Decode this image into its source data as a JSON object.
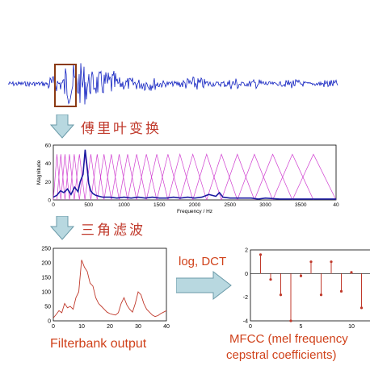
{
  "steps": {
    "fourier": "傅里叶变换",
    "triangle_filter": "三角滤波",
    "log_dct": "log, DCT"
  },
  "captions": {
    "filterbank": "Filterbank output",
    "mfcc_line1": "MFCC (mel frequency",
    "mfcc_line2": "cepstral coefficients)"
  },
  "colors": {
    "waveform": "#1020c0",
    "spectrum": "#1a1aa0",
    "filters": "#d040d0",
    "caption_red": "#d0421b",
    "arrow_fill": "#b8d8e0",
    "highlight_box": "#8b3a12",
    "plot_line": "#c0392b"
  },
  "chart_data": [
    {
      "type": "line",
      "name": "spectrum",
      "xlabel": "Frequency / Hz",
      "ylabel": "Magnitude",
      "xlim": [
        0,
        4000
      ],
      "ylim": [
        0,
        60
      ],
      "x_ticks": [
        "0",
        "500",
        "1000",
        "1500",
        "2000",
        "2500",
        "3000",
        "3500",
        "40"
      ],
      "y_ticks": [
        "0",
        "20",
        "40",
        "60"
      ],
      "x": [
        0,
        50,
        100,
        150,
        200,
        250,
        300,
        350,
        380,
        420,
        450,
        480,
        500,
        530,
        560,
        600,
        650,
        700,
        800,
        900,
        1000,
        1100,
        1200,
        1300,
        1400,
        1500,
        1600,
        1700,
        1800,
        1900,
        2000,
        2100,
        2200,
        2300,
        2350,
        2400,
        2500,
        2600,
        2700,
        2800,
        2900,
        3000,
        3200,
        3400,
        3600,
        3800,
        4000
      ],
      "values": [
        3,
        5,
        10,
        8,
        12,
        6,
        14,
        9,
        20,
        28,
        55,
        35,
        18,
        10,
        7,
        5,
        4,
        3,
        3,
        2,
        3,
        2,
        3,
        2,
        3,
        2,
        2,
        3,
        2,
        3,
        2,
        3,
        6,
        4,
        8,
        3,
        2,
        2,
        2,
        2,
        1,
        2,
        1,
        1,
        1,
        1,
        1
      ],
      "filters": {
        "count": 26,
        "peak_height": 50
      }
    },
    {
      "type": "line",
      "name": "filterbank_output",
      "xlim": [
        0,
        40
      ],
      "ylim": [
        0,
        250
      ],
      "x_ticks": [
        "0",
        "10",
        "20",
        "30",
        "40"
      ],
      "y_ticks": [
        "0",
        "50",
        "100",
        "150",
        "200",
        "250"
      ],
      "x": [
        0,
        1,
        2,
        3,
        4,
        5,
        6,
        7,
        8,
        9,
        10,
        11,
        12,
        13,
        14,
        15,
        16,
        17,
        18,
        19,
        20,
        21,
        22,
        23,
        24,
        25,
        26,
        27,
        28,
        29,
        30,
        31,
        32,
        33,
        34,
        35,
        36,
        37,
        38,
        39,
        40
      ],
      "values": [
        10,
        22,
        35,
        28,
        60,
        45,
        50,
        40,
        80,
        100,
        210,
        185,
        170,
        130,
        120,
        80,
        60,
        50,
        40,
        30,
        25,
        22,
        20,
        28,
        60,
        80,
        55,
        40,
        30,
        60,
        100,
        90,
        60,
        40,
        30,
        20,
        15,
        18,
        25,
        30,
        35
      ]
    },
    {
      "type": "stem",
      "name": "mfcc",
      "xlim": [
        0,
        12
      ],
      "ylim": [
        -4,
        2
      ],
      "x_ticks": [
        "0",
        "5",
        "10"
      ],
      "y_ticks": [
        "-4",
        "-2",
        "0",
        "2"
      ],
      "x": [
        1,
        2,
        3,
        4,
        5,
        6,
        7,
        8,
        9,
        10,
        11
      ],
      "values": [
        1.6,
        -0.5,
        -1.8,
        -4.0,
        -0.2,
        1.0,
        -1.8,
        1.0,
        -1.5,
        0.1,
        -2.9
      ]
    }
  ]
}
